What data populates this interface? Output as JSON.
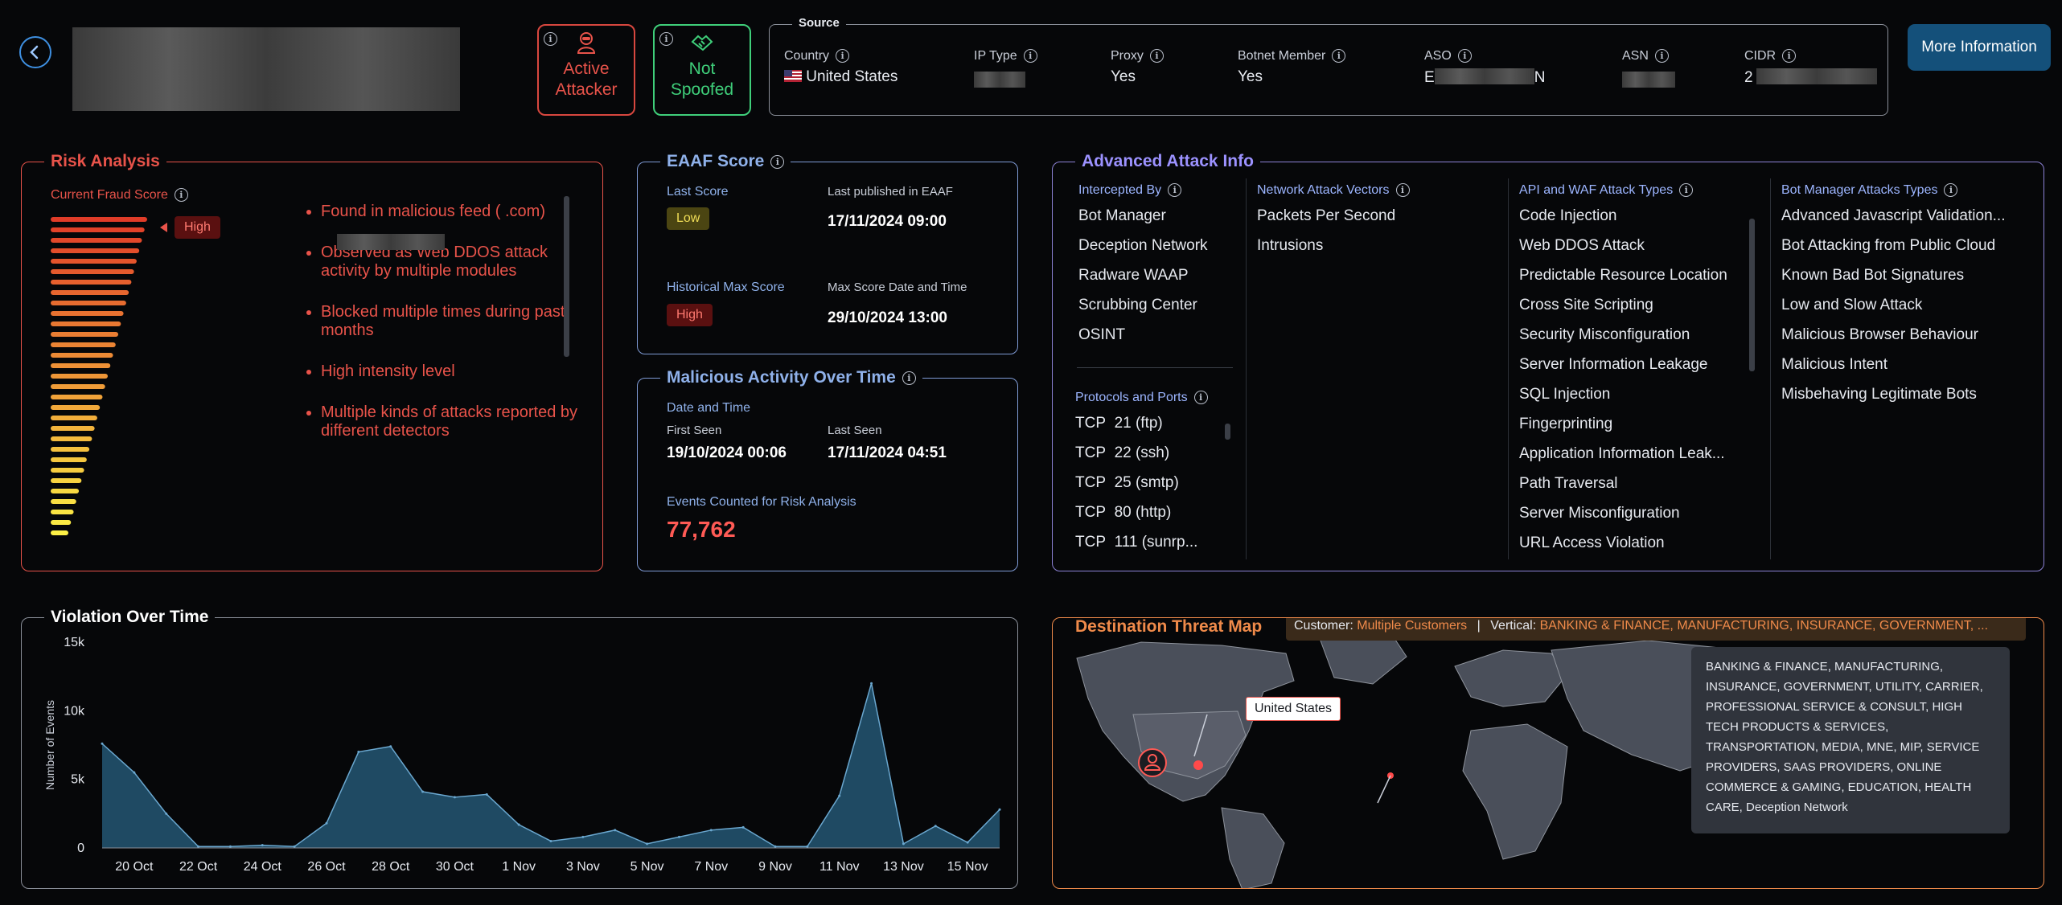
{
  "header": {
    "back_icon": "chevron-left-icon",
    "active_attacker_label": "Active\nAttacker",
    "not_spoofed_label": "Not\nSpoofed",
    "source_title": "Source",
    "fields": [
      {
        "label": "Country",
        "value": "United States"
      },
      {
        "label": "IP Type",
        "value": ""
      },
      {
        "label": "Proxy",
        "value": "Yes"
      },
      {
        "label": "Botnet Member",
        "value": "Yes"
      },
      {
        "label": "ASO",
        "value": "E",
        "value_tail": "N"
      },
      {
        "label": "ASN",
        "value": ""
      },
      {
        "label": "CIDR",
        "value": "2"
      }
    ],
    "more_info_button": "More Information"
  },
  "risk_analysis": {
    "title": "Risk Analysis",
    "score_label": "Current Fraud Score",
    "level_badge": "High",
    "findings": [
      "Found in malicious feed (                .com)",
      "Observed as Web DDOS attack activity by multiple modules",
      "Blocked multiple times during past months",
      "High intensity level",
      "Multiple kinds of attacks reported by different detectors"
    ]
  },
  "eaaf": {
    "title": "EAAF Score",
    "last_score_label": "Last Score",
    "last_score": "Low",
    "last_published_label": "Last published in EAAF",
    "last_published": "17/11/2024 09:00",
    "hist_max_label": "Historical Max Score",
    "hist_max": "High",
    "max_date_label": "Max Score Date and Time",
    "max_date": "29/10/2024 13:00"
  },
  "malicious": {
    "title": "Malicious Activity Over Time",
    "date_time_label": "Date and Time",
    "first_seen_label": "First Seen",
    "first_seen": "19/10/2024 00:06",
    "last_seen_label": "Last Seen",
    "last_seen": "17/11/2024 04:51",
    "events_label": "Events Counted for Risk Analysis",
    "events": "77,762"
  },
  "advanced": {
    "title": "Advanced Attack Info",
    "intercepted_title": "Intercepted By",
    "intercepted": [
      "Bot Manager",
      "Deception Network",
      "Radware WAAP",
      "Scrubbing Center",
      "OSINT"
    ],
    "protocols_title": "Protocols and Ports",
    "protocols": [
      {
        "proto": "TCP",
        "port": "21 (ftp)"
      },
      {
        "proto": "TCP",
        "port": "22 (ssh)"
      },
      {
        "proto": "TCP",
        "port": "25 (smtp)"
      },
      {
        "proto": "TCP",
        "port": "80 (http)"
      },
      {
        "proto": "TCP",
        "port": "111 (sunrp..."
      }
    ],
    "network_title": "Network Attack Vectors",
    "network": [
      "Packets Per Second",
      "Intrusions"
    ],
    "api_title": "API and WAF Attack Types",
    "api": [
      "Code Injection",
      "Web DDOS Attack",
      "Predictable Resource Location",
      "Cross Site Scripting",
      "Security Misconfiguration",
      "Server Information Leakage",
      "SQL Injection",
      "Fingerprinting",
      "Application Information Leak...",
      "Path Traversal",
      "Server Misconfiguration",
      "URL Access Violation"
    ],
    "bot_title": "Bot Manager Attacks Types",
    "bot": [
      "Advanced Javascript Validation...",
      "Bot Attacking from Public Cloud",
      "Known Bad Bot Signatures",
      "Low and Slow Attack",
      "Malicious Browser Behaviour",
      "Malicious Intent",
      "Misbehaving Legitimate Bots"
    ]
  },
  "violation": {
    "title": "Violation Over Time"
  },
  "chart_data": {
    "type": "area",
    "title": "Violation Over Time",
    "xlabel": "",
    "ylabel": "Number of Events",
    "ylim": [
      0,
      15000
    ],
    "yticks": [
      "0",
      "5k",
      "10k",
      "15k"
    ],
    "x_ticks": [
      "20 Oct",
      "22 Oct",
      "24 Oct",
      "26 Oct",
      "28 Oct",
      "30 Oct",
      "1 Nov",
      "3 Nov",
      "5 Nov",
      "7 Nov",
      "9 Nov",
      "11 Nov",
      "13 Nov",
      "15 Nov"
    ],
    "x": [
      "19 Oct",
      "20 Oct",
      "21 Oct",
      "22 Oct",
      "23 Oct",
      "24 Oct",
      "25 Oct",
      "26 Oct",
      "27 Oct",
      "28 Oct",
      "29 Oct",
      "30 Oct",
      "31 Oct",
      "1 Nov",
      "2 Nov",
      "3 Nov",
      "4 Nov",
      "5 Nov",
      "6 Nov",
      "7 Nov",
      "8 Nov",
      "9 Nov",
      "10 Nov",
      "11 Nov",
      "12 Nov",
      "13 Nov",
      "14 Nov",
      "15 Nov",
      "16 Nov"
    ],
    "values": [
      7600,
      5500,
      2500,
      100,
      100,
      200,
      100,
      1800,
      7000,
      7400,
      4100,
      3700,
      3900,
      1700,
      500,
      800,
      1300,
      300,
      800,
      1300,
      1500,
      100,
      100,
      3800,
      12000,
      300,
      1600,
      400,
      2800
    ],
    "fill": "#1f4a63",
    "stroke": "#6aa7cf",
    "grid": false
  },
  "threat_map": {
    "title": "Destination Threat Map",
    "customer_label": "Customer:",
    "customer_value": "Multiple Customers",
    "separator": "|",
    "vertical_label": "Vertical:",
    "vertical_value": "BANKING & FINANCE, MANUFACTURING, INSURANCE, GOVERNMENT, ...",
    "location_tooltip": "United States",
    "verticals_tooltip": "BANKING & FINANCE, MANUFACTURING, INSURANCE, GOVERNMENT, UTILITY, CARRIER, PROFESSIONAL SERVICE & CONSULT, HIGH TECH PRODUCTS & SERVICES, TRANSPORTATION, MEDIA, MNE, MIP, SERVICE PROVIDERS, SAAS PROVIDERS, ONLINE COMMERCE & GAMING, EDUCATION, HEALTH CARE, Deception Network"
  },
  "colors": {
    "risk": "#e8534a",
    "eaaf": "#7f9bd6",
    "advanced": "#8c82d6",
    "map": "#ef8a4a",
    "safe": "#3fcf7a",
    "accent": "#14507a"
  }
}
